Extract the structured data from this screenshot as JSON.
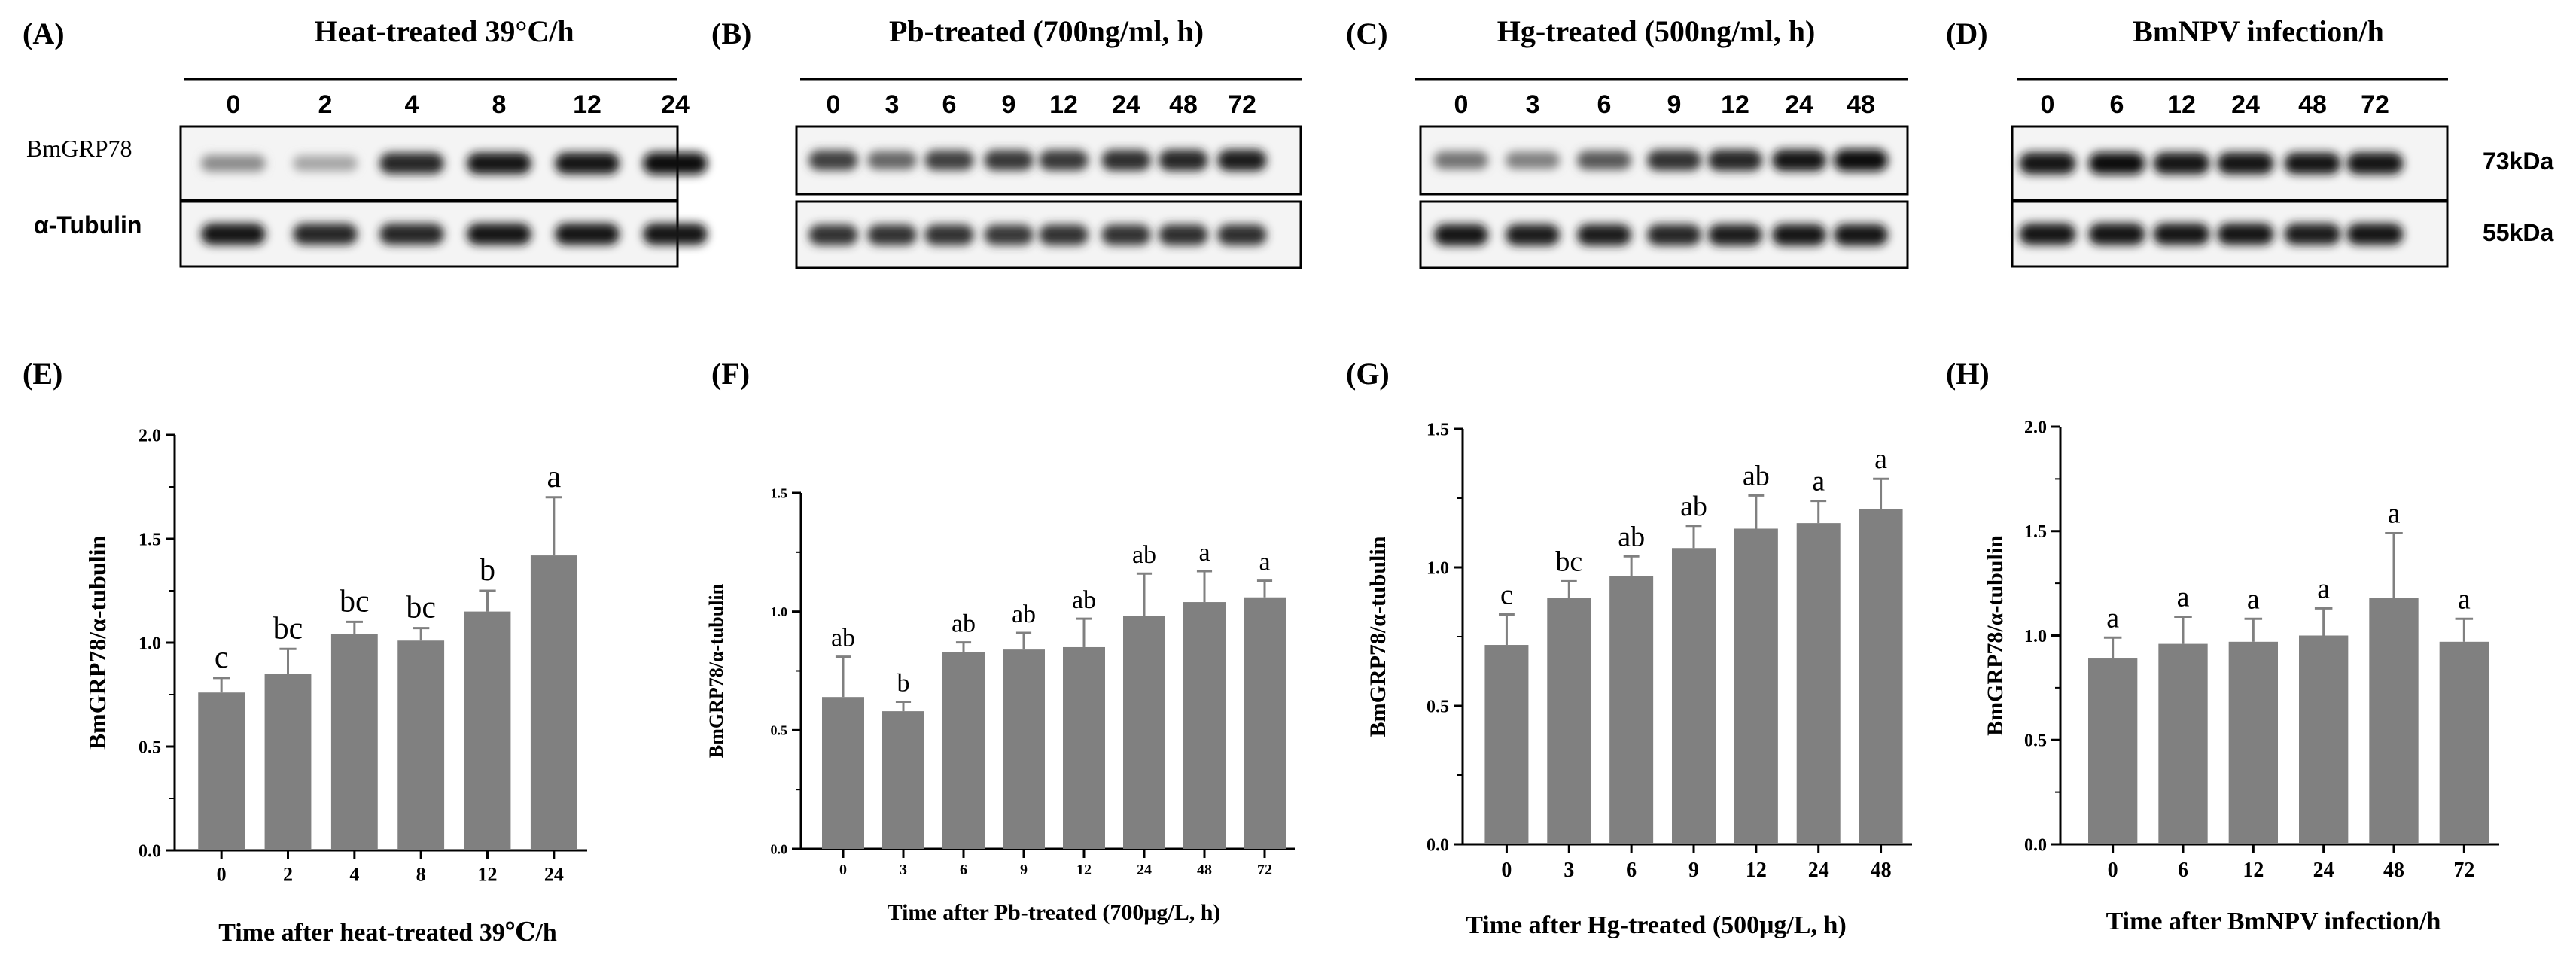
{
  "blots": [
    {
      "letter": "(A)",
      "title": "Heat-treated 39°C/h",
      "lanes": [
        "0",
        "2",
        "4",
        "8",
        "12",
        "24"
      ],
      "top_label": "BmGRP78",
      "bottom_label": "α-Tubulin",
      "top_intensity": [
        0.45,
        0.35,
        0.85,
        0.9,
        0.9,
        0.95
      ],
      "bottom_intensity": [
        0.9,
        0.85,
        0.85,
        0.9,
        0.9,
        0.9
      ]
    },
    {
      "letter": "(B)",
      "title": "Pb-treated (700ng/ml, h)",
      "lanes": [
        "0",
        "3",
        "6",
        "9",
        "12",
        "24",
        "48",
        "72"
      ],
      "top_intensity": [
        0.75,
        0.6,
        0.75,
        0.78,
        0.78,
        0.82,
        0.85,
        0.88
      ],
      "bottom_intensity": [
        0.8,
        0.8,
        0.8,
        0.78,
        0.8,
        0.8,
        0.82,
        0.82
      ]
    },
    {
      "letter": "(C)",
      "title": "Hg-treated (500ng/ml, h)",
      "lanes": [
        "0",
        "3",
        "6",
        "9",
        "12",
        "24",
        "48"
      ],
      "top_intensity": [
        0.55,
        0.5,
        0.65,
        0.8,
        0.85,
        0.9,
        0.95
      ],
      "bottom_intensity": [
        0.9,
        0.88,
        0.88,
        0.85,
        0.88,
        0.9,
        0.9
      ]
    },
    {
      "letter": "(D)",
      "title": "BmNPV infection/h",
      "lanes": [
        "0",
        "6",
        "12",
        "24",
        "48",
        "72"
      ],
      "top_intensity": [
        0.92,
        0.95,
        0.92,
        0.92,
        0.9,
        0.92
      ],
      "bottom_intensity": [
        0.9,
        0.92,
        0.9,
        0.9,
        0.88,
        0.9
      ],
      "mw_top": "73kDa",
      "mw_bottom": "55kDa"
    }
  ],
  "chart_data": [
    {
      "letter": "(E)",
      "type": "bar",
      "categories": [
        "0",
        "2",
        "4",
        "8",
        "12",
        "24"
      ],
      "values": [
        0.76,
        0.85,
        1.04,
        1.01,
        1.15,
        1.42
      ],
      "errors": [
        0.07,
        0.12,
        0.06,
        0.06,
        0.1,
        0.28
      ],
      "labels": [
        "c",
        "bc",
        "bc",
        "bc",
        "b",
        "a"
      ],
      "ylabel": "BmGRP78/α-tubulin",
      "xlabel": "Time after heat-treated 39℃/h",
      "ylim": [
        0,
        2.0
      ],
      "yticks": [
        "0.0",
        "0.5",
        "1.0",
        "1.5",
        "2.0"
      ]
    },
    {
      "letter": "(F)",
      "type": "bar",
      "categories": [
        "0",
        "3",
        "6",
        "9",
        "12",
        "24",
        "48",
        "72"
      ],
      "values": [
        0.64,
        0.58,
        0.83,
        0.84,
        0.85,
        0.98,
        1.04,
        1.06
      ],
      "errors": [
        0.17,
        0.04,
        0.04,
        0.07,
        0.12,
        0.18,
        0.13,
        0.07
      ],
      "labels": [
        "ab",
        "b",
        "ab",
        "ab",
        "ab",
        "ab",
        "a",
        "a"
      ],
      "ylabel": "BmGRP78/α-tubulin",
      "xlabel": "Time after Pb-treated (700μg/L, h)",
      "ylim": [
        0,
        1.5
      ],
      "yticks": [
        "0.0",
        "0.5",
        "1.0",
        "1.5"
      ]
    },
    {
      "letter": "(G)",
      "type": "bar",
      "categories": [
        "0",
        "3",
        "6",
        "9",
        "12",
        "24",
        "48"
      ],
      "values": [
        0.72,
        0.89,
        0.97,
        1.07,
        1.14,
        1.16,
        1.21
      ],
      "errors": [
        0.11,
        0.06,
        0.07,
        0.08,
        0.12,
        0.08,
        0.11
      ],
      "labels": [
        "c",
        "bc",
        "ab",
        "ab",
        "ab",
        "a",
        "a"
      ],
      "ylabel": "BmGRP78/α-tubulin",
      "xlabel": "Time after Hg-treated (500μg/L, h)",
      "ylim": [
        0,
        1.5
      ],
      "yticks": [
        "0.0",
        "0.5",
        "1.0",
        "1.5"
      ]
    },
    {
      "letter": "(H)",
      "type": "bar",
      "categories": [
        "0",
        "6",
        "12",
        "24",
        "48",
        "72"
      ],
      "values": [
        0.89,
        0.96,
        0.97,
        1.0,
        1.18,
        0.97
      ],
      "errors": [
        0.1,
        0.13,
        0.11,
        0.13,
        0.31,
        0.11
      ],
      "labels": [
        "a",
        "a",
        "a",
        "a",
        "a",
        "a"
      ],
      "ylabel": "BmGRP78/α-tubulin",
      "xlabel": "Time after BmNPV infection/h",
      "ylim": [
        0,
        2.0
      ],
      "yticks": [
        "0.0",
        "0.5",
        "1.0",
        "1.5",
        "2.0"
      ]
    }
  ]
}
